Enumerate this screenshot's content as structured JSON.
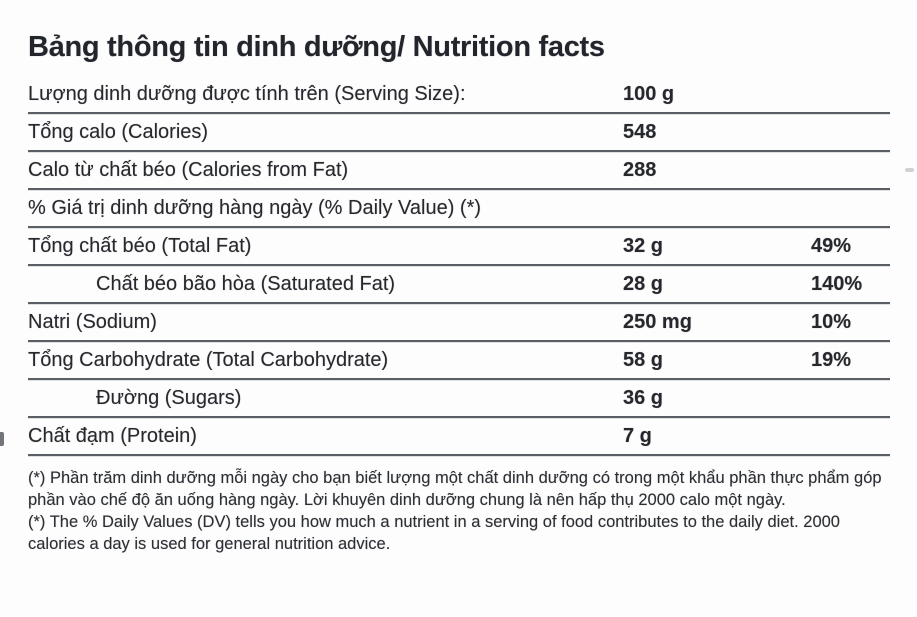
{
  "label": {
    "title": "Bảng thông tin dinh dưỡng/ Nutrition facts",
    "columns": {
      "amount_basis": "per 100 g"
    },
    "rows": [
      {
        "label": "Lượng dinh dưỡng được tính trên (Serving Size):",
        "value": "100 g",
        "pct": "",
        "indent": false
      },
      {
        "label": "Tổng calo (Calories)",
        "value": "548",
        "pct": "",
        "indent": false
      },
      {
        "label": "Calo từ chất béo (Calories from Fat)",
        "value": "288",
        "pct": "",
        "indent": false
      },
      {
        "label": "% Giá trị dinh dưỡng hàng ngày (% Daily Value) (*)",
        "value": "",
        "pct": "",
        "indent": false
      },
      {
        "label": "Tổng chất béo (Total Fat)",
        "value": "32 g",
        "pct": "49%",
        "indent": false
      },
      {
        "label": "Chất béo bão hòa (Saturated Fat)",
        "value": "28 g",
        "pct": "140%",
        "indent": true
      },
      {
        "label": "Natri (Sodium)",
        "value": "250 mg",
        "pct": "10%",
        "indent": false
      },
      {
        "label": "Tổng Carbohydrate (Total Carbohydrate)",
        "value": "58 g",
        "pct": "19%",
        "indent": false
      },
      {
        "label": "Đường (Sugars)",
        "value": "36 g",
        "pct": "",
        "indent": true
      },
      {
        "label": "Chất đạm (Protein)",
        "value": "7 g",
        "pct": "",
        "indent": false
      }
    ],
    "footnotes": [
      "(*) Phần trăm dinh dưỡng mỗi ngày cho bạn biết lượng một chất dinh dưỡng có trong một khẩu phần thực phẩm góp phần vào chế độ ăn uống hàng ngày. Lời khuyên dinh dưỡng chung là nên hấp thụ 2000 calo một ngày.",
      "(*) The % Daily Values (DV) tells you how much a nutrient in a serving of food contributes to the daily diet. 2000 calories a day is used for general nutrition advice."
    ],
    "colors": {
      "text": "#26282d",
      "rule": "#5a5f66",
      "background": "#fdfdfd"
    }
  }
}
